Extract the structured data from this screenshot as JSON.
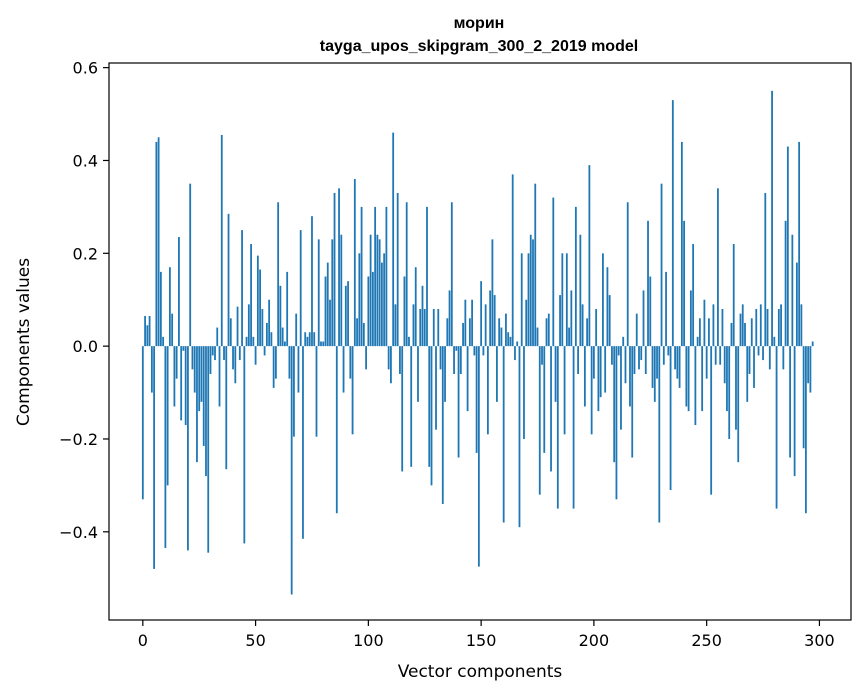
{
  "chart_data": {
    "type": "bar",
    "title": "морин",
    "subtitle": "tayga_upos_skipgram_300_2_2019 model",
    "xlabel": "Vector components",
    "ylabel": "Components values",
    "xlim": [
      -15,
      314
    ],
    "ylim": [
      -0.59,
      0.61
    ],
    "x_ticks": [
      0,
      50,
      100,
      150,
      200,
      250,
      300
    ],
    "x_tick_labels": [
      "0",
      "50",
      "100",
      "150",
      "200",
      "250",
      "300"
    ],
    "y_ticks": [
      -0.4,
      -0.2,
      0.0,
      0.2,
      0.4,
      0.6
    ],
    "y_tick_labels": [
      "−0.4",
      "−0.2",
      "0.0",
      "0.2",
      "0.4",
      "0.6"
    ],
    "grid": false,
    "bar_color": "#1f77b4",
    "series": [
      {
        "values": [
          -0.33,
          0.065,
          0.045,
          0.065,
          -0.1,
          -0.48,
          0.44,
          0.45,
          0.16,
          0.02,
          -0.435,
          -0.3,
          0.17,
          0.07,
          -0.13,
          -0.07,
          0.235,
          -0.16,
          -0.01,
          -0.17,
          -0.44,
          0.35,
          -0.05,
          -0.1,
          -0.25,
          -0.14,
          -0.12,
          -0.215,
          -0.28,
          -0.445,
          -0.06,
          -0.02,
          -0.03,
          0.04,
          -0.13,
          0.455,
          -0.03,
          -0.265,
          0.285,
          0.06,
          -0.05,
          -0.08,
          0.085,
          -0.03,
          0.25,
          -0.425,
          0.02,
          0.09,
          0.22,
          0.02,
          -0.04,
          0.195,
          0.165,
          0.08,
          -0.02,
          0.05,
          0.1,
          0.03,
          -0.09,
          -0.07,
          0.31,
          0.13,
          0.04,
          0.01,
          0.16,
          -0.07,
          -0.535,
          -0.195,
          0.07,
          -0.1,
          0.25,
          -0.415,
          0.03,
          0.02,
          0.03,
          0.28,
          0.03,
          -0.195,
          0.23,
          0.01,
          0.01,
          0.15,
          0.18,
          0.1,
          0.23,
          0.33,
          -0.36,
          0.34,
          0.24,
          -0.1,
          0.13,
          0.14,
          -0.07,
          -0.19,
          0.36,
          0.06,
          0.2,
          0.3,
          0.05,
          -0.05,
          0.15,
          0.24,
          0.16,
          0.3,
          0.24,
          0.23,
          0.18,
          0.2,
          0.3,
          -0.05,
          -0.08,
          0.46,
          0.09,
          0.33,
          -0.06,
          -0.27,
          0.15,
          0.31,
          0.02,
          -0.26,
          0.09,
          0.17,
          -0.12,
          0.08,
          0.13,
          0.08,
          0.3,
          -0.26,
          -0.3,
          0.08,
          -0.18,
          0.08,
          -0.05,
          -0.34,
          -0.12,
          0.06,
          0.12,
          0.31,
          -0.06,
          -0.01,
          -0.24,
          -0.06,
          0.05,
          0.1,
          -0.14,
          0.06,
          0.1,
          -0.02,
          -0.23,
          -0.475,
          0.14,
          -0.02,
          0.09,
          -0.19,
          0.12,
          0.23,
          0.11,
          -0.12,
          0.06,
          0.04,
          -0.38,
          0.07,
          0.03,
          0.02,
          0.37,
          -0.03,
          0.01,
          -0.39,
          0.2,
          -0.2,
          0.1,
          0.2,
          0.24,
          0.23,
          0.35,
          0.04,
          -0.32,
          -0.04,
          -0.23,
          0.06,
          0.07,
          -0.27,
          0.32,
          -0.12,
          -0.35,
          0.11,
          0.2,
          -0.19,
          0.2,
          0.04,
          0.12,
          -0.35,
          0.3,
          -0.06,
          0.24,
          0.09,
          -0.13,
          0.06,
          0.39,
          -0.19,
          -0.07,
          0.08,
          -0.14,
          -0.11,
          0.2,
          -0.1,
          0.17,
          0.11,
          -0.04,
          -0.25,
          -0.33,
          -0.02,
          -0.18,
          0.02,
          -0.08,
          0.31,
          -0.13,
          -0.24,
          -0.06,
          0.07,
          -0.05,
          -0.03,
          0.12,
          -0.06,
          0.27,
          0.15,
          -0.09,
          -0.12,
          -0.07,
          -0.38,
          0.35,
          -0.04,
          0.16,
          -0.02,
          -0.31,
          0.53,
          -0.05,
          -0.07,
          -0.09,
          0.44,
          0.27,
          -0.13,
          -0.14,
          0.12,
          0.22,
          -0.17,
          0.02,
          0.06,
          -0.14,
          0.1,
          -0.07,
          0.06,
          -0.32,
          0.09,
          -0.04,
          0.34,
          -0.04,
          0.08,
          -0.08,
          -0.14,
          -0.2,
          0.05,
          0.22,
          -0.18,
          -0.25,
          0.07,
          0.09,
          0.05,
          -0.12,
          -0.06,
          0.06,
          -0.09,
          0.08,
          -0.02,
          0.09,
          -0.03,
          0.33,
          0.08,
          -0.05,
          0.55,
          0.02,
          -0.35,
          0.08,
          0.09,
          -0.05,
          0.27,
          0.43,
          -0.24,
          0.24,
          -0.28,
          0.18,
          0.44,
          0.09,
          -0.22,
          -0.36,
          -0.08,
          -0.1,
          0.01
        ]
      }
    ]
  }
}
